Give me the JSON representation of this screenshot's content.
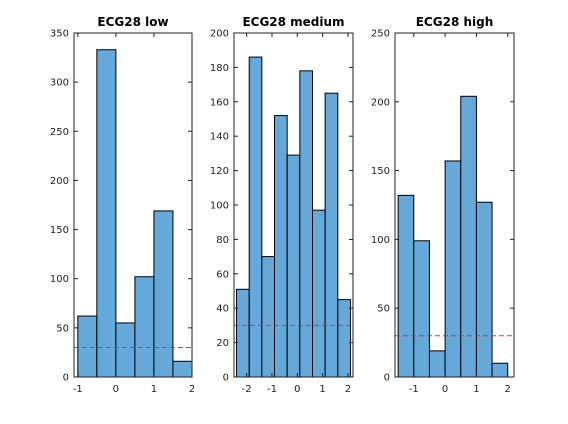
{
  "chart_data": [
    {
      "type": "bar",
      "subtype": "histogram",
      "title": "ECG28 low",
      "xlabel": "",
      "ylabel": "",
      "xlim": [
        -1.1,
        2.0
      ],
      "ylim": [
        0,
        350
      ],
      "xticks": [
        -1,
        0,
        1,
        2
      ],
      "yticks": [
        0,
        50,
        100,
        150,
        200,
        250,
        300,
        350
      ],
      "bin_edges": [
        -1.0,
        -0.5,
        0.0,
        0.5,
        1.0,
        1.5,
        2.0
      ],
      "values": [
        62,
        333,
        55,
        102,
        169,
        16
      ],
      "reference_line": 30,
      "grid": false
    },
    {
      "type": "bar",
      "subtype": "histogram",
      "title": "ECG28 medium",
      "xlabel": "",
      "ylabel": "",
      "xlim": [
        -2.5,
        2.2
      ],
      "ylim": [
        0,
        200
      ],
      "xticks": [
        -2,
        -1,
        0,
        1,
        2
      ],
      "yticks": [
        0,
        20,
        40,
        60,
        80,
        100,
        120,
        140,
        160,
        180,
        200
      ],
      "bin_edges": [
        -2.4,
        -1.9,
        -1.4,
        -0.9,
        -0.4,
        0.1,
        0.6,
        1.1,
        1.6,
        2.1
      ],
      "values": [
        51,
        186,
        70,
        152,
        129,
        178,
        97,
        165,
        45
      ],
      "reference_line": 30,
      "grid": false
    },
    {
      "type": "bar",
      "subtype": "histogram",
      "title": "ECG28 high",
      "xlabel": "",
      "ylabel": "",
      "xlim": [
        -1.6,
        2.2
      ],
      "ylim": [
        0,
        250
      ],
      "xticks": [
        -1,
        0,
        1,
        2
      ],
      "yticks": [
        0,
        50,
        100,
        150,
        200,
        250
      ],
      "bin_edges": [
        -1.5,
        -1.0,
        -0.5,
        0.0,
        0.5,
        1.0,
        1.5,
        2.0
      ],
      "values": [
        132,
        99,
        19,
        157,
        204,
        127,
        10
      ],
      "reference_line": 30,
      "grid": false
    }
  ],
  "colors": {
    "bar_fill": "#65a9db",
    "bar_edge": "#000000",
    "reference_line": "#e0302a"
  }
}
